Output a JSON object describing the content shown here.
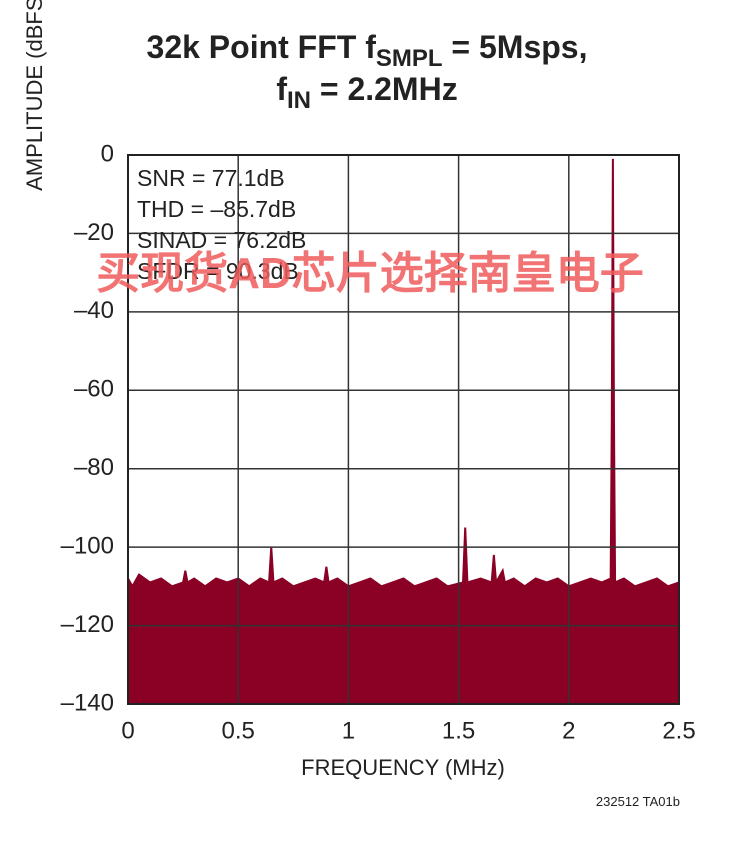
{
  "chart_data": {
    "type": "area",
    "title_lines": [
      [
        {
          "text": "32k Point FFT f"
        },
        {
          "text": "SMPL",
          "sub": true
        },
        {
          "text": " = 5Msps,"
        }
      ],
      [
        {
          "text": "f"
        },
        {
          "text": "IN",
          "sub": true
        },
        {
          "text": " = 2.2MHz"
        }
      ]
    ],
    "x_label": "FREQUENCY (MHz)",
    "y_label": "AMPLITUDE (dBFS)",
    "annotations": [
      "SNR = 77.1dB",
      "THD = –85.7dB",
      "SINAD = 76.2dB",
      "SFDR = 90.3dB"
    ],
    "watermark": "买现货AD芯片选择南皇电子",
    "footnote": "232512 TA01b",
    "color": "#8b0025",
    "grid": true,
    "xlim": [
      0,
      2.5
    ],
    "xticks": [
      0,
      0.5,
      1,
      1.5,
      2,
      2.5
    ],
    "ylim": [
      -140,
      0
    ],
    "yticks": [
      {
        "value": 0,
        "label": "0"
      },
      {
        "value": -20,
        "label": "–20"
      },
      {
        "value": -40,
        "label": "–40"
      },
      {
        "value": -60,
        "label": "–60"
      },
      {
        "value": -80,
        "label": "–80"
      },
      {
        "value": -100,
        "label": "–100"
      },
      {
        "value": -120,
        "label": "–120"
      },
      {
        "value": -140,
        "label": "–140"
      }
    ],
    "x": [
      0,
      0.02,
      0.05,
      0.1,
      0.15,
      0.2,
      0.25,
      0.26,
      0.27,
      0.3,
      0.35,
      0.4,
      0.45,
      0.5,
      0.55,
      0.6,
      0.64,
      0.65,
      0.66,
      0.7,
      0.75,
      0.8,
      0.85,
      0.89,
      0.9,
      0.91,
      0.95,
      1.0,
      1.05,
      1.1,
      1.15,
      1.2,
      1.25,
      1.3,
      1.35,
      1.4,
      1.45,
      1.52,
      1.53,
      1.54,
      1.6,
      1.65,
      1.66,
      1.67,
      1.7,
      1.71,
      1.75,
      1.8,
      1.85,
      1.9,
      1.95,
      2.0,
      2.05,
      2.1,
      2.15,
      2.19,
      2.195,
      2.2,
      2.205,
      2.21,
      2.25,
      2.3,
      2.35,
      2.4,
      2.45,
      2.5
    ],
    "values": [
      -108,
      -110,
      -107,
      -109,
      -108,
      -110,
      -109,
      -106,
      -109,
      -108,
      -110,
      -108,
      -109,
      -108,
      -110,
      -108,
      -109,
      -100,
      -109,
      -108,
      -110,
      -109,
      -108,
      -109,
      -105,
      -109,
      -108,
      -110,
      -109,
      -108,
      -110,
      -109,
      -108,
      -110,
      -109,
      -108,
      -110,
      -109,
      -95,
      -109,
      -108,
      -109,
      -102,
      -109,
      -106,
      -109,
      -108,
      -110,
      -108,
      -109,
      -108,
      -110,
      -109,
      -108,
      -109,
      -108,
      -68,
      -1,
      -68,
      -109,
      -108,
      -110,
      -109,
      -108,
      -110,
      -109
    ]
  }
}
